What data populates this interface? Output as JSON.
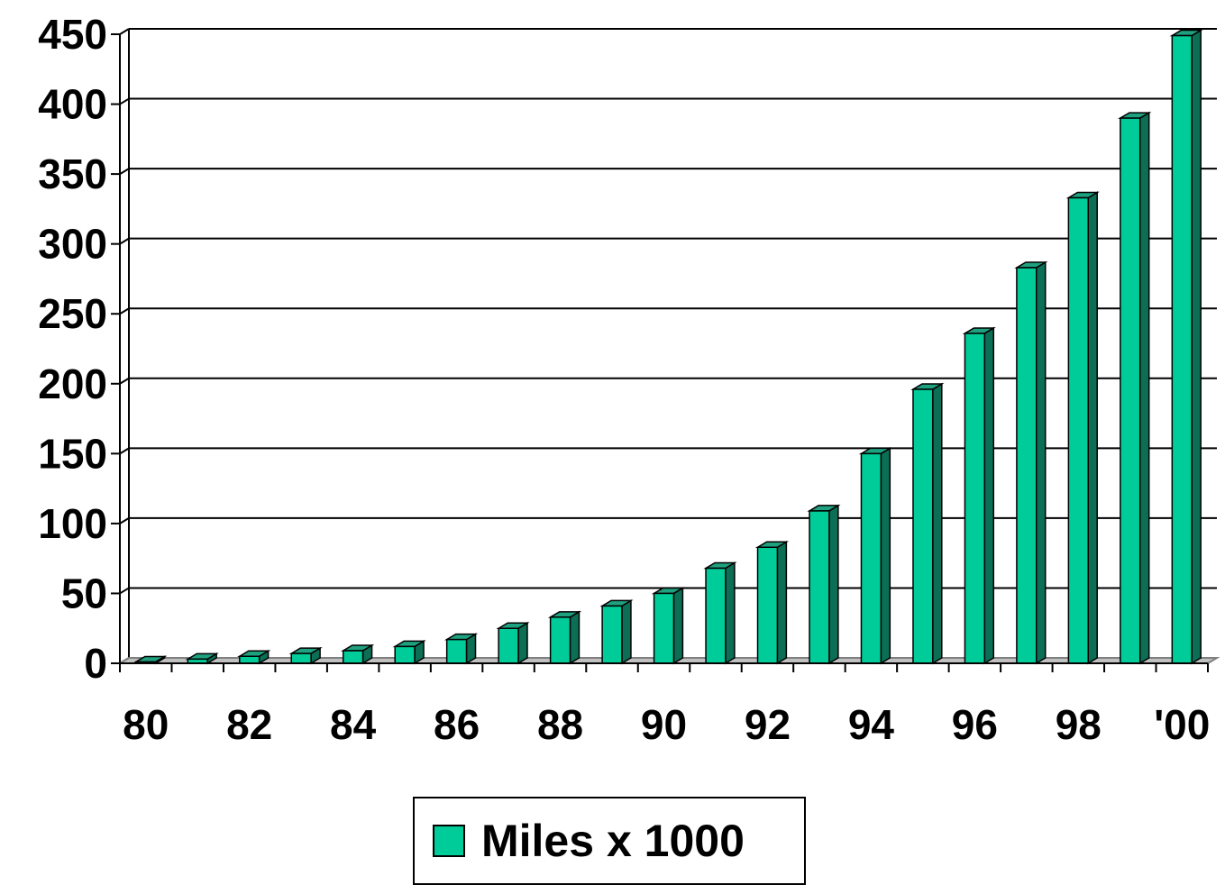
{
  "colors": {
    "bar_front": "#00CC99",
    "bar_top": "#1FA07F",
    "bar_side": "#0B6E55",
    "grid": "#000000",
    "floor": "#808080"
  },
  "chart_data": {
    "type": "bar",
    "title": "",
    "xlabel": "",
    "ylabel": "",
    "ylim": [
      0,
      450
    ],
    "yticks": [
      0,
      50,
      100,
      150,
      200,
      250,
      300,
      350,
      400,
      450
    ],
    "grid": true,
    "legend_position": "bottom",
    "categories": [
      "80",
      "81",
      "82",
      "83",
      "84",
      "85",
      "86",
      "87",
      "88",
      "89",
      "90",
      "91",
      "92",
      "93",
      "94",
      "95",
      "96",
      "97",
      "98",
      "99",
      "'00"
    ],
    "xtick_labels": [
      "80",
      "82",
      "84",
      "86",
      "88",
      "90",
      "92",
      "94",
      "96",
      "98",
      "'00"
    ],
    "series": [
      {
        "name": "Miles x 1000",
        "values": [
          1,
          3,
          5,
          7,
          9,
          12,
          17,
          25,
          33,
          41,
          50,
          68,
          83,
          109,
          150,
          196,
          236,
          283,
          333,
          390,
          449
        ]
      }
    ]
  }
}
